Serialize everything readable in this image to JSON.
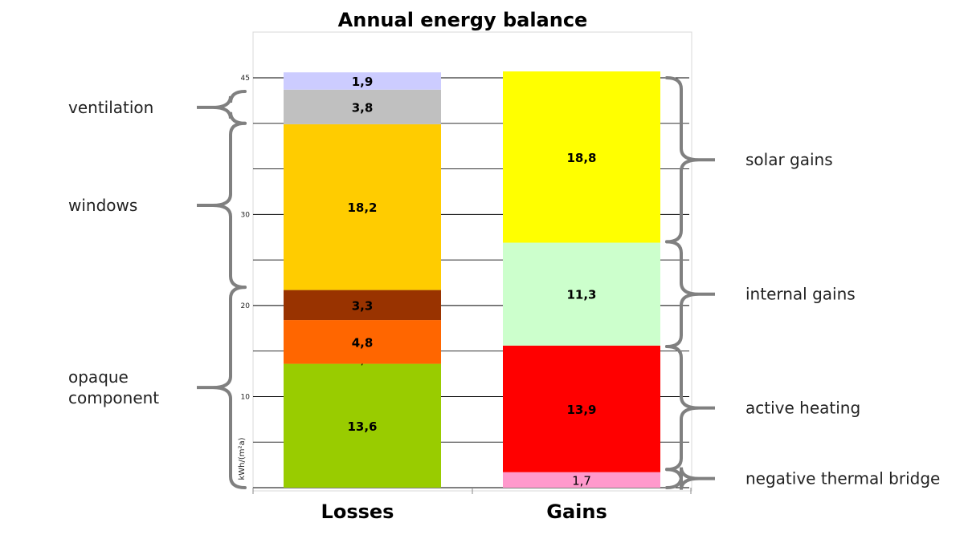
{
  "chart_data": {
    "type": "bar",
    "stacked": true,
    "title": "Annual energy balance",
    "ylabel": "kWh/(m²a)",
    "ylim": [
      0,
      45
    ],
    "y_tick_labels": [
      10,
      20,
      30,
      45
    ],
    "gridlines_at": [
      0,
      5,
      10,
      15,
      20,
      25,
      30,
      35,
      40,
      45
    ],
    "grid": true,
    "categories": [
      "Losses",
      "Gains"
    ],
    "stacks": [
      {
        "category": "Losses",
        "segments": [
          {
            "value": 13.6,
            "label": "13,6",
            "color": "#99cc00"
          },
          {
            "value": 0.0,
            "label": "0,0",
            "color": "#99cc00"
          },
          {
            "value": 4.8,
            "label": "4,8",
            "color": "#ff6600"
          },
          {
            "value": 3.3,
            "label": "3,3",
            "color": "#993300"
          },
          {
            "value": 18.2,
            "label": "18,2",
            "color": "#ffcc00"
          },
          {
            "value": 3.8,
            "label": "3,8",
            "color": "#c0c0c0"
          },
          {
            "value": 1.9,
            "label": "1,9",
            "color": "#ccccff"
          }
        ]
      },
      {
        "category": "Gains",
        "segments": [
          {
            "value": 1.7,
            "label": "1,7",
            "color": "#ff99cc"
          },
          {
            "value": 13.9,
            "label": "13,9",
            "color": "#ff0000"
          },
          {
            "value": 11.3,
            "label": "11,3",
            "color": "#ccffcc"
          },
          {
            "value": 18.8,
            "label": "18,8",
            "color": "#ffff00"
          }
        ]
      }
    ],
    "group_annotations": {
      "left": [
        {
          "label": "ventilation",
          "from": 40.0,
          "to": 43.5
        },
        {
          "label": "windows",
          "from": 22.0,
          "to": 40.0
        },
        {
          "label": "opaque component",
          "from": 0.0,
          "to": 22.0
        }
      ],
      "right": [
        {
          "label": "solar gains",
          "from": 27.0,
          "to": 45.0
        },
        {
          "label": "internal gains",
          "from": 15.5,
          "to": 27.0
        },
        {
          "label": "active heating",
          "from": 2.0,
          "to": 15.5
        },
        {
          "label": "negative thermal bridge",
          "from": 0.0,
          "to": 2.0
        }
      ]
    }
  }
}
